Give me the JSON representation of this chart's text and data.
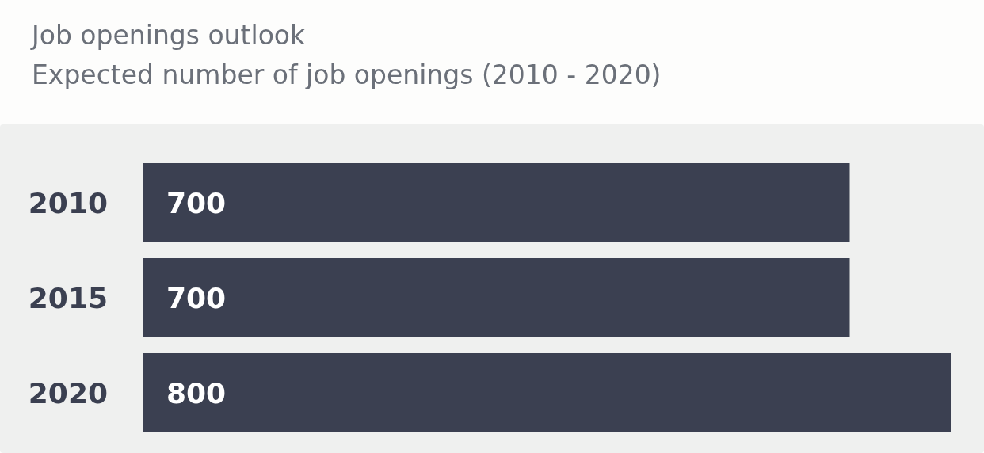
{
  "chart_data": {
    "type": "bar",
    "orientation": "horizontal",
    "title": "Job openings outlook",
    "subtitle": "Expected number of job openings (2010 - 2020)",
    "categories": [
      "2010",
      "2015",
      "2020"
    ],
    "values": [
      700,
      700,
      800
    ],
    "color": "#3b4051",
    "data_labels": true
  }
}
